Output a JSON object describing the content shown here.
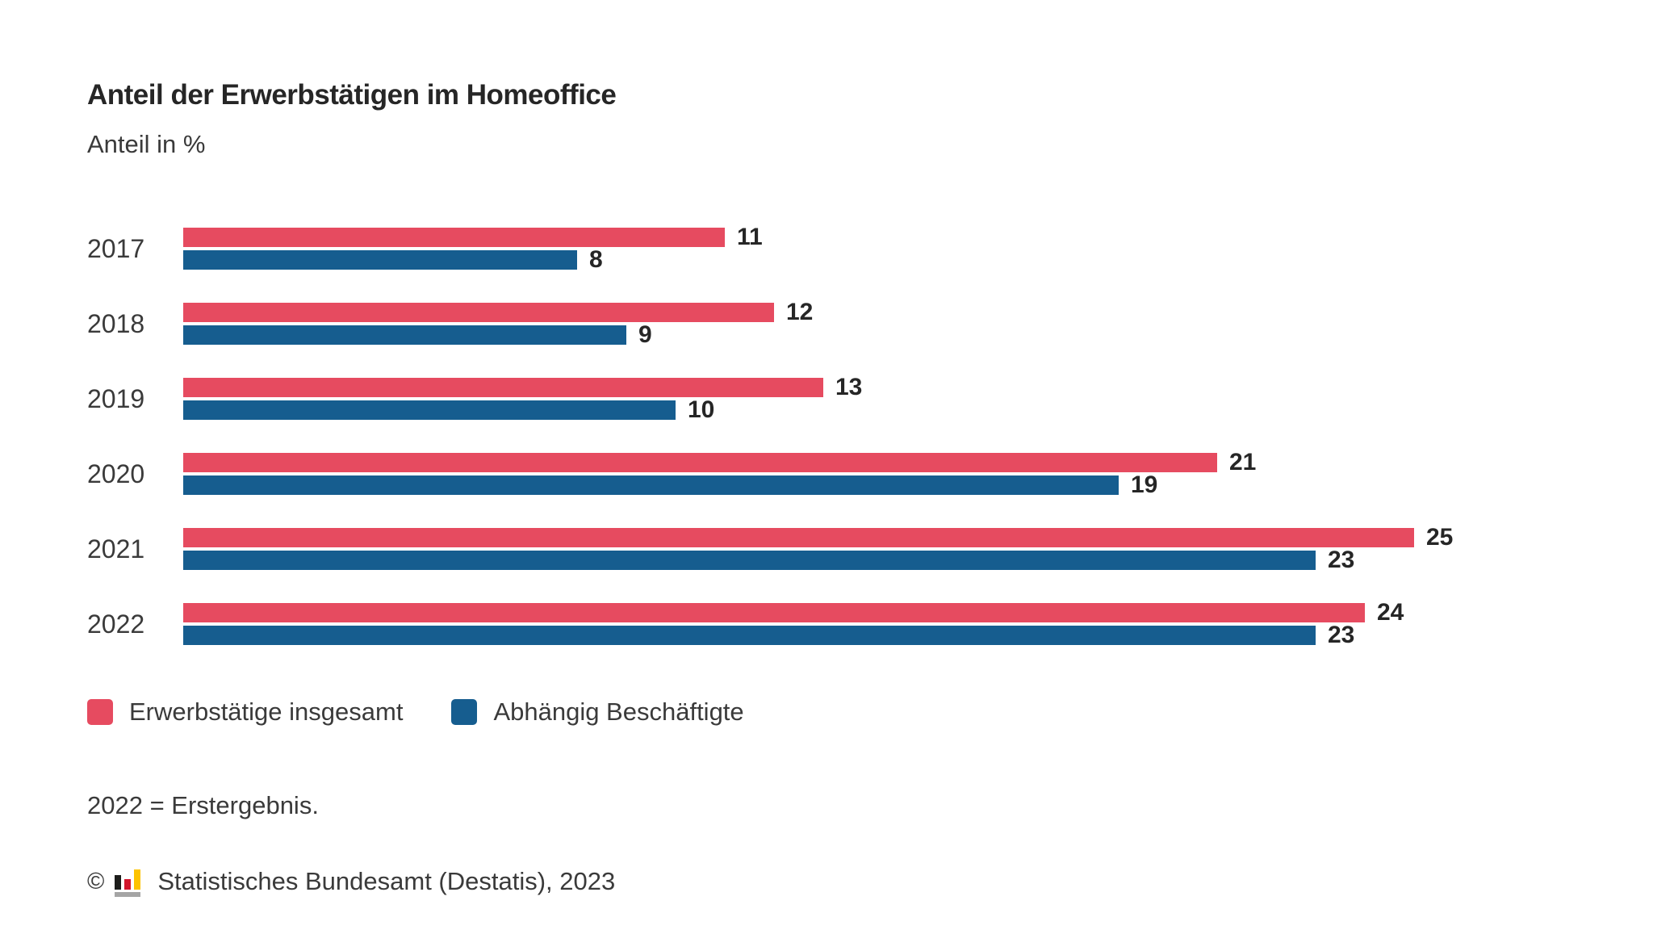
{
  "header": {
    "title": "Anteil der Erwerbstätigen im Homeoffice",
    "subtitle": "Anteil in %"
  },
  "chart_data": {
    "type": "bar",
    "orientation": "horizontal",
    "title": "Anteil der Erwerbstätigen im Homeoffice",
    "ylabel": "",
    "xlabel": "Anteil in %",
    "xlim": [
      0,
      25
    ],
    "grid": false,
    "legend_position": "bottom",
    "value_labels": true,
    "categories": [
      "2017",
      "2018",
      "2019",
      "2020",
      "2021",
      "2022"
    ],
    "series": [
      {
        "name": "Erwerbstätige insgesamt",
        "color": "#e64b60",
        "values": [
          11,
          12,
          13,
          21,
          25,
          24
        ]
      },
      {
        "name": "Abhängig Beschäftigte",
        "color": "#165d8f",
        "values": [
          8,
          9,
          10,
          19,
          23,
          23
        ]
      }
    ]
  },
  "footnote": "2022 = Erstergebnis.",
  "copyright": {
    "symbol": "©",
    "text": "Statistisches Bundesamt (Destatis), 2023",
    "logo_colors": {
      "bar1": "#1d1d1b",
      "bar2": "#d3152c",
      "bar3": "#fdc300",
      "base": "#a5a5a5"
    }
  }
}
